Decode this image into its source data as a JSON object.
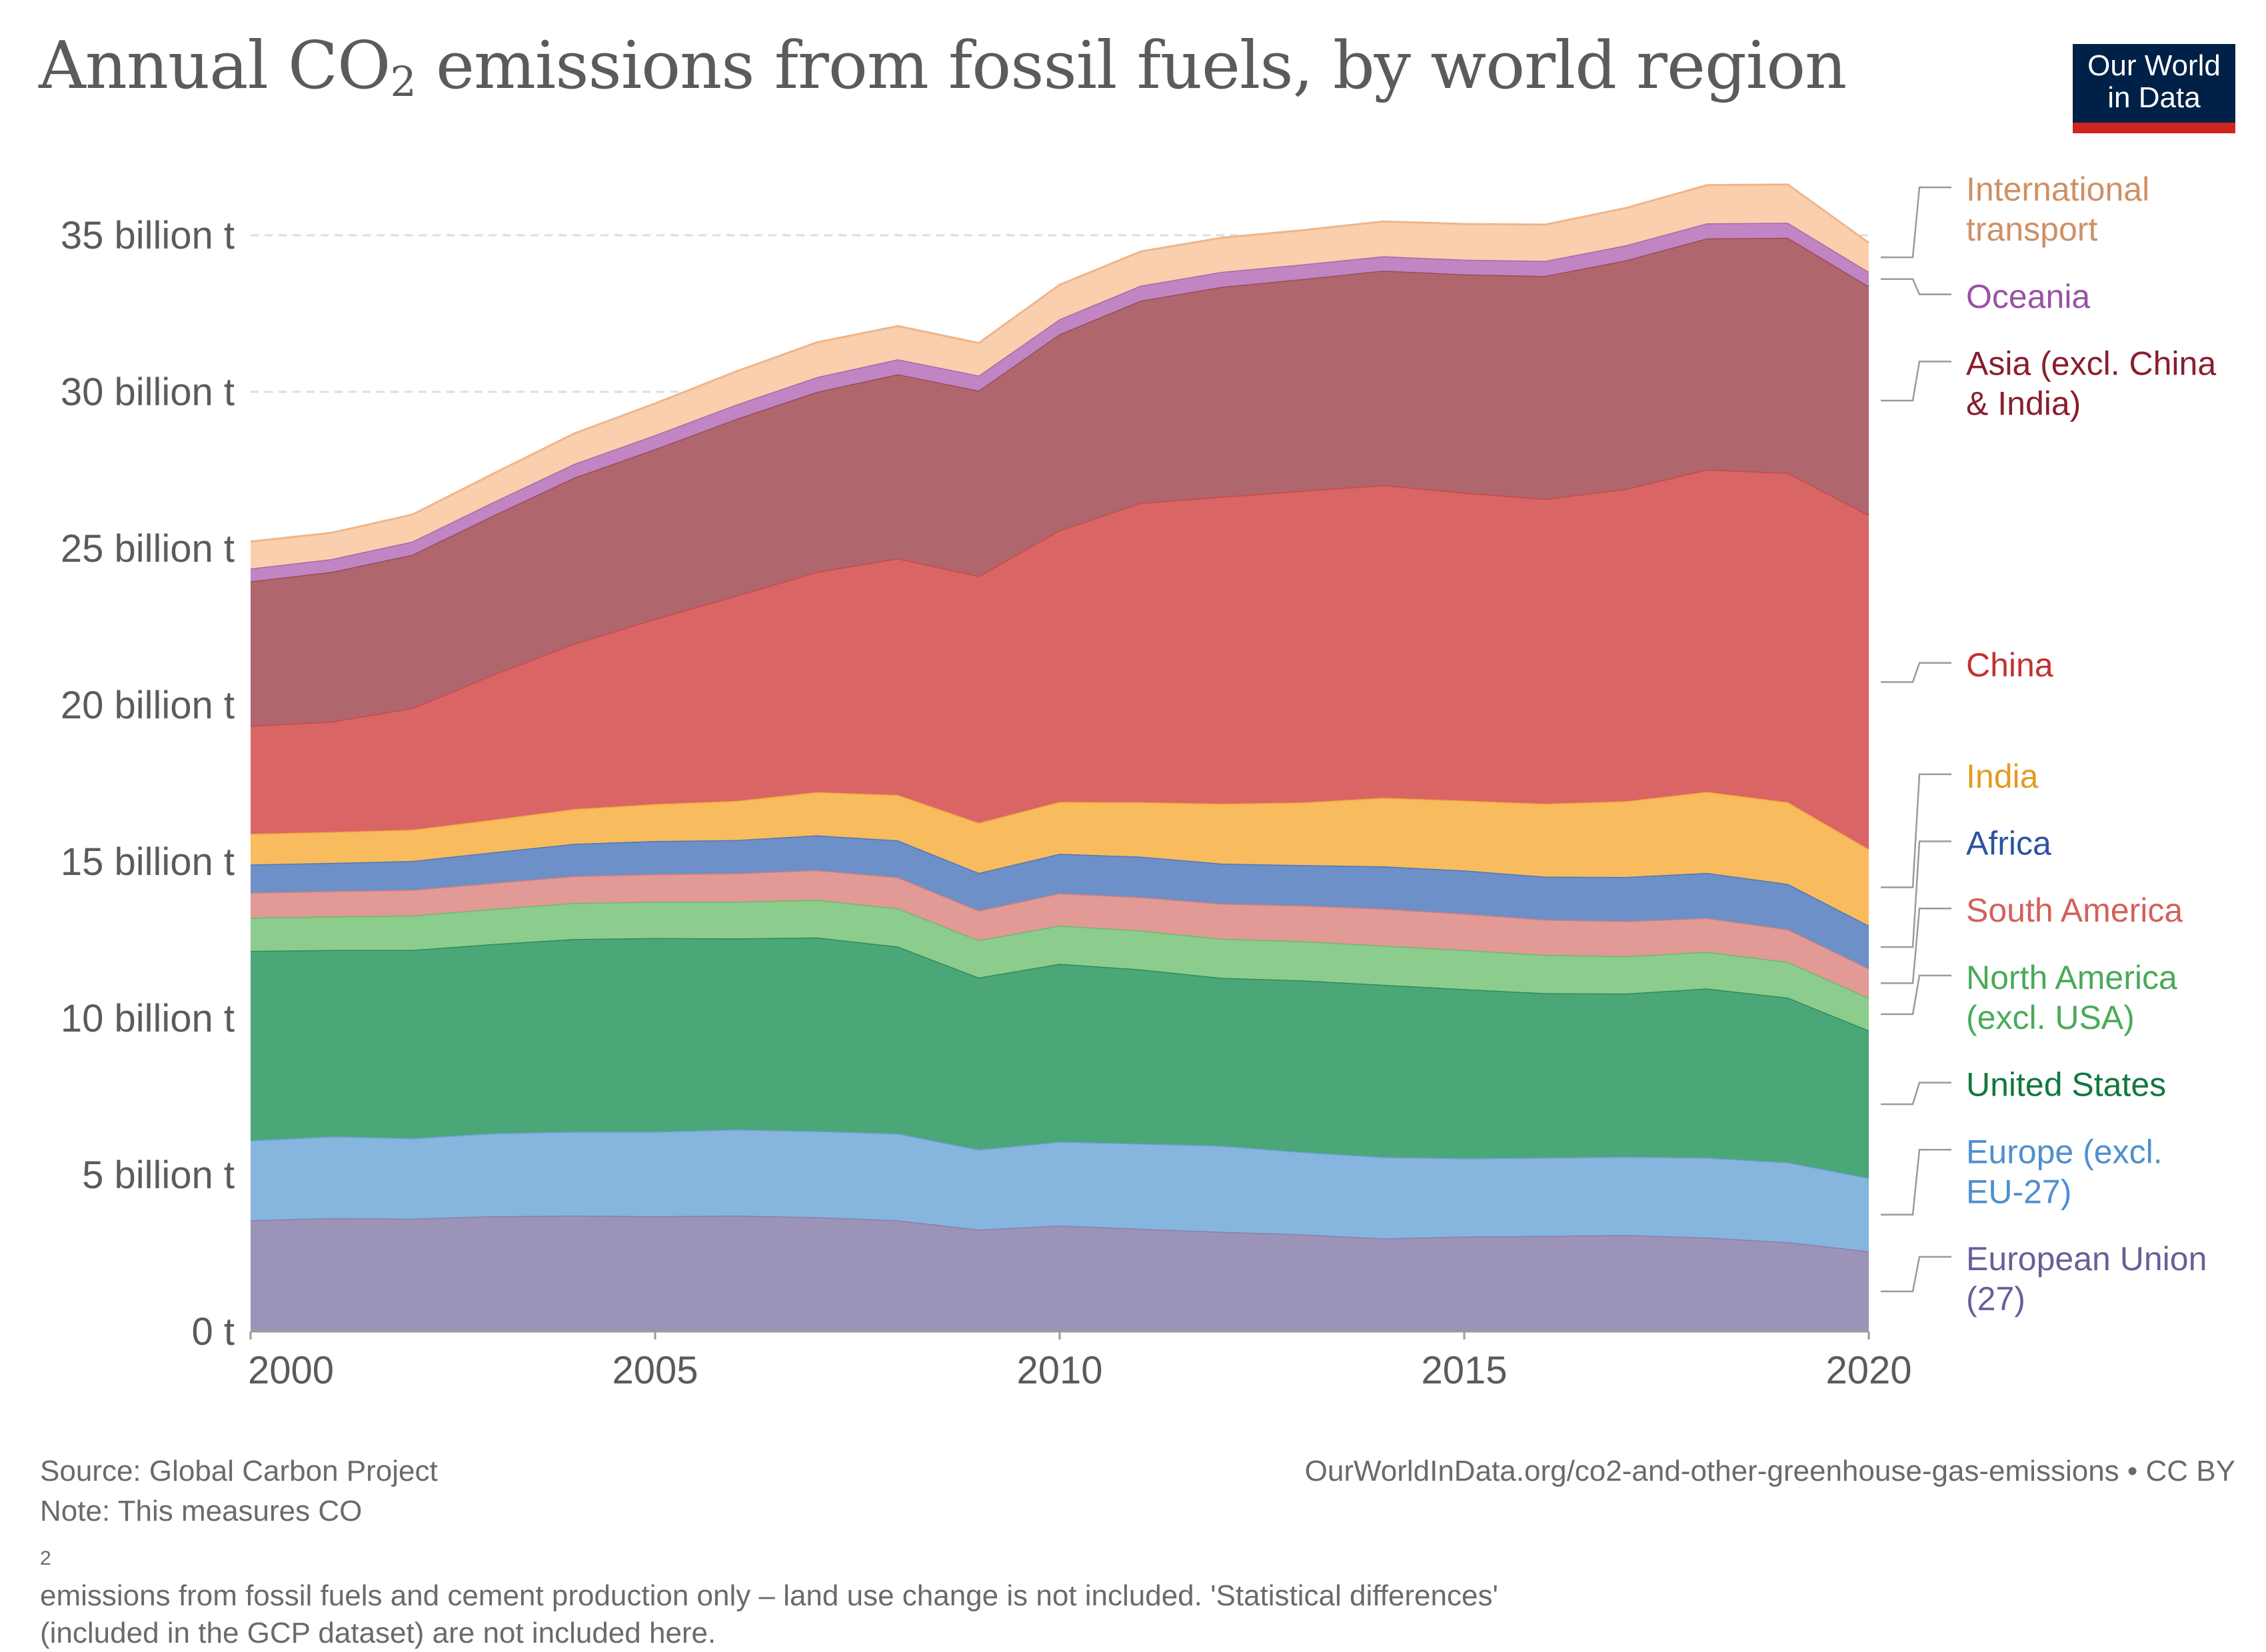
{
  "header": {
    "title_part1": "Annual CO",
    "title_subscript": "2",
    "title_part2": " emissions from fossil fuels, by world region",
    "logo_line1": "Our World",
    "logo_line2": "in Data"
  },
  "footer": {
    "source": "Source: Global Carbon Project",
    "url": "OurWorldInData.org/co2-and-other-greenhouse-gas-emissions • CC BY",
    "note_line1_a": "Note: This measures CO",
    "note_line1_sub": "2",
    "note_line1_b": " emissions from fossil fuels and cement production only – land use change is not included. 'Statistical differences'",
    "note_line2": "(included in the GCP dataset) are not included here."
  },
  "colors": {
    "label_text": "#5b5b5b",
    "gridline": "#dddddd",
    "logo_bg": "#002147",
    "logo_accent": "#ce261e"
  },
  "chart_data": {
    "type": "area",
    "stacked": true,
    "x": [
      2000,
      2001,
      2002,
      2003,
      2004,
      2005,
      2006,
      2007,
      2008,
      2009,
      2010,
      2011,
      2012,
      2013,
      2014,
      2015,
      2016,
      2017,
      2018,
      2019,
      2020
    ],
    "xticks": [
      2000,
      2005,
      2010,
      2015,
      2020
    ],
    "yticks": [
      0,
      5,
      10,
      15,
      20,
      25,
      30,
      35
    ],
    "ytick_labels": [
      "0 t",
      "5 billion t",
      "10 billion t",
      "15 billion t",
      "20 billion t",
      "25 billion t",
      "30 billion t",
      "35 billion t"
    ],
    "ylim": [
      0,
      37
    ],
    "unit": "billion t",
    "grid": "horizontal dashed",
    "legend": "right",
    "series": [
      {
        "name": "European Union (27)",
        "label_lines": [
          "European Union",
          "(27)"
        ],
        "fill": "#9c94b8",
        "line": "#8a7fab",
        "text_color": "#6a5e9a",
        "values": [
          3.55,
          3.62,
          3.6,
          3.68,
          3.7,
          3.68,
          3.7,
          3.65,
          3.55,
          3.25,
          3.38,
          3.28,
          3.18,
          3.1,
          2.97,
          3.03,
          3.05,
          3.08,
          3.0,
          2.85,
          2.56
        ]
      },
      {
        "name": "Europe (excl. EU-27)",
        "label_lines": [
          "Europe (excl.",
          "EU-27)"
        ],
        "fill": "#86b5de",
        "line": "#6a9fd0",
        "text_color": "#4f8fcf",
        "values": [
          2.55,
          2.61,
          2.57,
          2.65,
          2.68,
          2.7,
          2.75,
          2.75,
          2.77,
          2.56,
          2.68,
          2.72,
          2.75,
          2.63,
          2.6,
          2.5,
          2.5,
          2.5,
          2.55,
          2.55,
          2.34
        ]
      },
      {
        "name": "United States",
        "label_lines": [
          "United States"
        ],
        "fill": "#4ba678",
        "line": "#2f8c5d",
        "text_color": "#13773f",
        "values": [
          6.05,
          5.95,
          6.01,
          6.04,
          6.15,
          6.18,
          6.1,
          6.18,
          5.97,
          5.49,
          5.68,
          5.56,
          5.36,
          5.48,
          5.5,
          5.4,
          5.25,
          5.21,
          5.4,
          5.26,
          4.71
        ]
      },
      {
        "name": "North America (excl. USA)",
        "label_lines": [
          "North America",
          "(excl. USA)"
        ],
        "fill": "#8ccc8c",
        "line": "#6fb86f",
        "text_color": "#4aaa5a",
        "values": [
          1.06,
          1.07,
          1.1,
          1.12,
          1.15,
          1.16,
          1.17,
          1.2,
          1.22,
          1.19,
          1.22,
          1.24,
          1.25,
          1.25,
          1.25,
          1.25,
          1.22,
          1.19,
          1.17,
          1.14,
          1.04
        ]
      },
      {
        "name": "South America",
        "label_lines": [
          "South America"
        ],
        "fill": "#e19a96",
        "line": "#d17f7b",
        "text_color": "#d3615c",
        "values": [
          0.8,
          0.81,
          0.82,
          0.83,
          0.86,
          0.88,
          0.91,
          0.95,
          0.99,
          0.95,
          1.03,
          1.07,
          1.12,
          1.14,
          1.18,
          1.16,
          1.13,
          1.12,
          1.08,
          1.04,
          0.94
        ]
      },
      {
        "name": "Africa",
        "label_lines": [
          "Africa"
        ],
        "fill": "#6c90c7",
        "line": "#4f78b8",
        "text_color": "#2d53a0",
        "values": [
          0.9,
          0.9,
          0.92,
          0.98,
          1.03,
          1.06,
          1.06,
          1.11,
          1.18,
          1.2,
          1.26,
          1.29,
          1.28,
          1.29,
          1.35,
          1.38,
          1.37,
          1.41,
          1.44,
          1.45,
          1.37
        ]
      },
      {
        "name": "India",
        "label_lines": [
          "India"
        ],
        "fill": "#f8bb5e",
        "line": "#f0a63c",
        "text_color": "#e39b22",
        "values": [
          0.98,
          0.99,
          1.0,
          1.04,
          1.11,
          1.18,
          1.25,
          1.38,
          1.45,
          1.6,
          1.66,
          1.74,
          1.91,
          2.0,
          2.19,
          2.23,
          2.33,
          2.42,
          2.59,
          2.61,
          2.44
        ]
      },
      {
        "name": "China",
        "label_lines": [
          "China"
        ],
        "fill": "#d96565",
        "line": "#c84a4a",
        "text_color": "#c42f2f",
        "values": [
          3.45,
          3.52,
          3.88,
          4.63,
          5.28,
          5.91,
          6.55,
          7.03,
          7.55,
          7.88,
          8.67,
          9.55,
          9.8,
          9.95,
          9.98,
          9.83,
          9.73,
          9.97,
          10.29,
          10.51,
          10.67
        ]
      },
      {
        "name": "Asia (excl. China & India)",
        "label_lines": [
          "Asia (excl. China",
          "& India)"
        ],
        "fill": "#b0666d",
        "line": "#9a4d55",
        "text_color": "#8a1e2e",
        "values": [
          4.61,
          4.78,
          4.9,
          5.08,
          5.3,
          5.42,
          5.64,
          5.75,
          5.88,
          5.92,
          6.26,
          6.46,
          6.7,
          6.76,
          6.85,
          6.97,
          7.12,
          7.3,
          7.38,
          7.51,
          7.3
        ]
      },
      {
        "name": "Oceania",
        "label_lines": [
          "Oceania"
        ],
        "fill": "#c085c2",
        "line": "#a86aab",
        "text_color": "#9a52a6",
        "values": [
          0.41,
          0.41,
          0.42,
          0.43,
          0.44,
          0.45,
          0.46,
          0.47,
          0.48,
          0.48,
          0.48,
          0.48,
          0.48,
          0.47,
          0.46,
          0.47,
          0.48,
          0.48,
          0.48,
          0.48,
          0.46
        ]
      },
      {
        "name": "International transport",
        "label_lines": [
          "International",
          "transport"
        ],
        "fill": "#f9cfad",
        "line": "#efb58a",
        "text_color": "#cf9064",
        "values": [
          0.86,
          0.84,
          0.86,
          0.91,
          0.97,
          1.01,
          1.06,
          1.11,
          1.06,
          1.04,
          1.1,
          1.09,
          1.09,
          1.09,
          1.11,
          1.14,
          1.16,
          1.19,
          1.22,
          1.22,
          0.93
        ]
      }
    ]
  }
}
